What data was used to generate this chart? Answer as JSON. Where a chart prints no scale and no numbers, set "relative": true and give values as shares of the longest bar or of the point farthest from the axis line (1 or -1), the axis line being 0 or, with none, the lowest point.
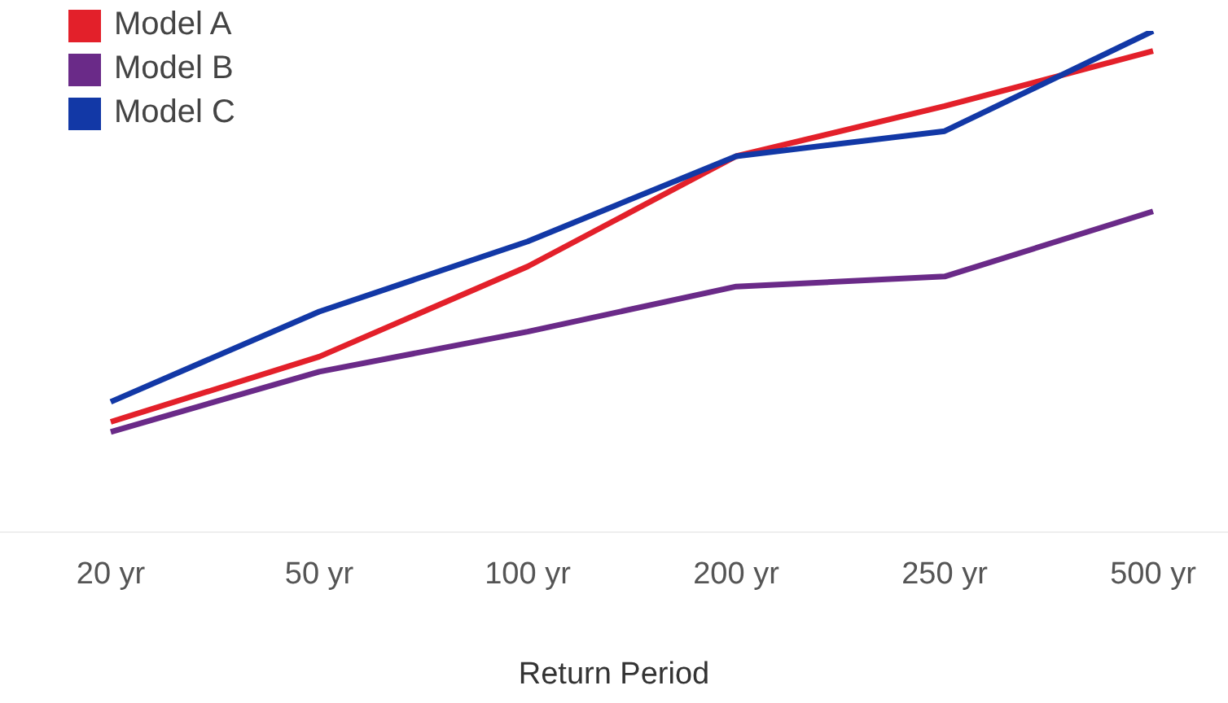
{
  "chart_data": {
    "type": "line",
    "relative": true,
    "xlabel": "Return Period",
    "categories": [
      "20 yr",
      "50 yr",
      "100 yr",
      "200 yr",
      "250 yr",
      "500 yr"
    ],
    "series": [
      {
        "name": "Model A",
        "color": "#e3202a",
        "values": [
          0.22,
          0.35,
          0.53,
          0.75,
          0.85,
          0.96
        ]
      },
      {
        "name": "Model B",
        "color": "#6a2a88",
        "values": [
          0.2,
          0.32,
          0.4,
          0.49,
          0.51,
          0.64
        ]
      },
      {
        "name": "Model C",
        "color": "#1238a6",
        "values": [
          0.26,
          0.44,
          0.58,
          0.75,
          0.8,
          1
        ]
      }
    ],
    "legend": "top left",
    "grid": false,
    "marker": "none",
    "line_style": "solid"
  }
}
